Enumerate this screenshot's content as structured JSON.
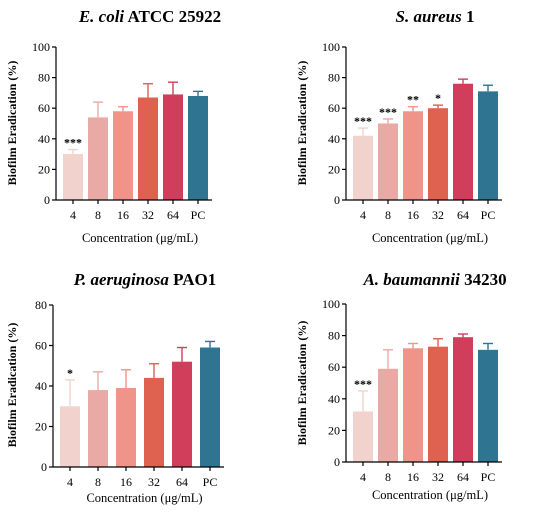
{
  "colors": [
    "#f2d2cd",
    "#e9aaa6",
    "#f0948a",
    "#df6150",
    "#d03e5c",
    "#2f7490"
  ],
  "chart_data": [
    {
      "type": "bar",
      "title_italic": "E. coli",
      "title_rest": " ATCC 25922",
      "ylabel": "Biofilm Eradication (%)",
      "xlabel": "Concentration (μg/mL)",
      "categories": [
        "4",
        "8",
        "16",
        "32",
        "64",
        "PC"
      ],
      "values": [
        30,
        54,
        58,
        67,
        69,
        68
      ],
      "errors": [
        3,
        10,
        3,
        9,
        8,
        3
      ],
      "significance": [
        "***",
        "",
        "",
        "",
        "",
        ""
      ],
      "ylim": [
        0,
        100
      ],
      "yticks": [
        0,
        20,
        40,
        60,
        80,
        100
      ]
    },
    {
      "type": "bar",
      "title_italic": "S. aureus",
      "title_rest": " 1",
      "ylabel": "Biofilm Eradication (%)",
      "xlabel": "Concentration (μg/mL)",
      "categories": [
        "4",
        "8",
        "16",
        "32",
        "64",
        "PC"
      ],
      "values": [
        42,
        50,
        58,
        60,
        76,
        71
      ],
      "errors": [
        5,
        3,
        3,
        2,
        3,
        4
      ],
      "significance": [
        "***",
        "***",
        "**",
        "*",
        "",
        ""
      ],
      "ylim": [
        0,
        100
      ],
      "yticks": [
        0,
        20,
        40,
        60,
        80,
        100
      ]
    },
    {
      "type": "bar",
      "title_italic": "P. aeruginosa",
      "title_rest": " PAO1",
      "ylabel": "Biofilm Eradication (%)",
      "xlabel": "Concentration (μg/mL)",
      "categories": [
        "4",
        "8",
        "16",
        "32",
        "64",
        "PC"
      ],
      "values": [
        30,
        38,
        39,
        44,
        52,
        59
      ],
      "errors": [
        13,
        9,
        9,
        7,
        7,
        3
      ],
      "significance": [
        "*",
        "",
        "",
        "",
        "",
        ""
      ],
      "ylim": [
        0,
        80
      ],
      "yticks": [
        0,
        20,
        40,
        60,
        80
      ]
    },
    {
      "type": "bar",
      "title_italic": "A. baumannii",
      "title_rest": " 34230",
      "ylabel": "Biofilm Eradication (%)",
      "xlabel": "Concentration (μg/mL)",
      "categories": [
        "4",
        "8",
        "16",
        "32",
        "64",
        "PC"
      ],
      "values": [
        32,
        59,
        72,
        73,
        79,
        71
      ],
      "errors": [
        13,
        12,
        3,
        5,
        2,
        4
      ],
      "significance": [
        "***",
        "",
        "",
        "",
        "",
        ""
      ],
      "ylim": [
        0,
        100
      ],
      "yticks": [
        0,
        20,
        40,
        60,
        80,
        100
      ]
    }
  ]
}
